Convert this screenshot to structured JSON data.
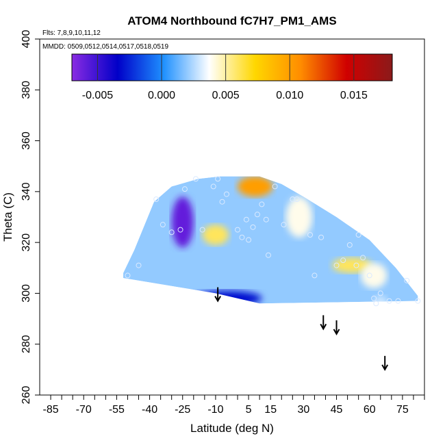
{
  "chart_data": {
    "type": "heatmap",
    "title": "ATOM4 Northbound fC7H7_PM1_AMS",
    "flights_note": "Flts: 7,8,9,10,11,12",
    "dates_note": "MMDD: 0509,0512,0514,0517,0518,0519",
    "xlabel": "Latitude (deg N)",
    "ylabel": "Theta (C)",
    "xlim": [
      -90,
      85
    ],
    "ylim": [
      260,
      400
    ],
    "x_ticks": [
      -85,
      -70,
      -55,
      -40,
      -25,
      -10,
      5,
      15,
      30,
      45,
      60,
      75
    ],
    "y_ticks": [
      260,
      280,
      300,
      320,
      340,
      360,
      380,
      400
    ],
    "colorbar": {
      "range": [
        -0.007,
        0.018
      ],
      "ticks": [
        -0.005,
        0.0,
        0.005,
        0.01,
        0.015
      ],
      "tick_labels": [
        "-0.005",
        "0.000",
        "0.005",
        "0.010",
        "0.015"
      ],
      "colors": [
        "#8a2be2",
        "#0000c8",
        "#1e90ff",
        "#ffffff",
        "#ffd700",
        "#ff8c00",
        "#d00000",
        "#8b1a1a"
      ]
    },
    "field_outline": [
      [
        -52,
        308
      ],
      [
        -47,
        317
      ],
      [
        -38,
        336
      ],
      [
        -30,
        342
      ],
      [
        -18,
        345
      ],
      [
        -8,
        346
      ],
      [
        10,
        346
      ],
      [
        20,
        343
      ],
      [
        30,
        338
      ],
      [
        45,
        330
      ],
      [
        60,
        321
      ],
      [
        72,
        310
      ],
      [
        82,
        299
      ],
      [
        82,
        297
      ],
      [
        10,
        296
      ],
      [
        -10,
        300
      ],
      [
        -52,
        306
      ]
    ],
    "hotspots": [
      {
        "lat": -25,
        "theta": 328,
        "value": -0.006,
        "rx": 5,
        "ry": 10
      },
      {
        "lat": -5,
        "theta": 298,
        "value": -0.003,
        "rx": 16,
        "ry": 3
      },
      {
        "lat": 8,
        "theta": 342,
        "value": 0.01,
        "rx": 8,
        "ry": 4
      },
      {
        "lat": -10,
        "theta": 323,
        "value": 0.006,
        "rx": 6,
        "ry": 4
      },
      {
        "lat": 28,
        "theta": 330,
        "value": 0.004,
        "rx": 6,
        "ry": 8
      },
      {
        "lat": 52,
        "theta": 311,
        "value": 0.006,
        "rx": 9,
        "ry": 3
      },
      {
        "lat": 62,
        "theta": 307,
        "value": 0.004,
        "rx": 6,
        "ry": 5
      },
      {
        "lat": 65,
        "theta": 296,
        "value": 0.003,
        "rx": 3,
        "ry": 3
      }
    ],
    "observations": [
      [
        -50,
        307
      ],
      [
        -45,
        311
      ],
      [
        -37,
        337
      ],
      [
        -34,
        327
      ],
      [
        -30,
        324
      ],
      [
        -26,
        325
      ],
      [
        -24,
        341
      ],
      [
        -19,
        345
      ],
      [
        -16,
        325
      ],
      [
        -11,
        342
      ],
      [
        -9,
        345
      ],
      [
        -7,
        336
      ],
      [
        -5,
        339
      ],
      [
        0,
        325
      ],
      [
        2,
        322
      ],
      [
        4,
        329
      ],
      [
        5,
        321
      ],
      [
        7,
        326
      ],
      [
        9,
        331
      ],
      [
        11,
        335
      ],
      [
        13,
        329
      ],
      [
        14,
        315
      ],
      [
        17,
        342
      ],
      [
        21,
        327
      ],
      [
        25,
        337
      ],
      [
        27,
        337
      ],
      [
        33,
        323
      ],
      [
        35,
        307
      ],
      [
        38,
        322
      ],
      [
        45,
        311
      ],
      [
        48,
        313
      ],
      [
        51,
        319
      ],
      [
        54,
        311
      ],
      [
        55,
        323
      ],
      [
        57,
        314
      ],
      [
        60,
        307
      ],
      [
        62,
        298
      ],
      [
        63,
        296
      ],
      [
        65,
        300
      ],
      [
        69,
        297
      ],
      [
        73,
        297
      ],
      [
        77,
        305
      ],
      [
        82,
        297
      ]
    ],
    "arrows": [
      {
        "lat": -9,
        "theta": 297
      },
      {
        "lat": 39,
        "theta": 286
      },
      {
        "lat": 45,
        "theta": 284
      },
      {
        "lat": 67,
        "theta": 270
      }
    ]
  }
}
